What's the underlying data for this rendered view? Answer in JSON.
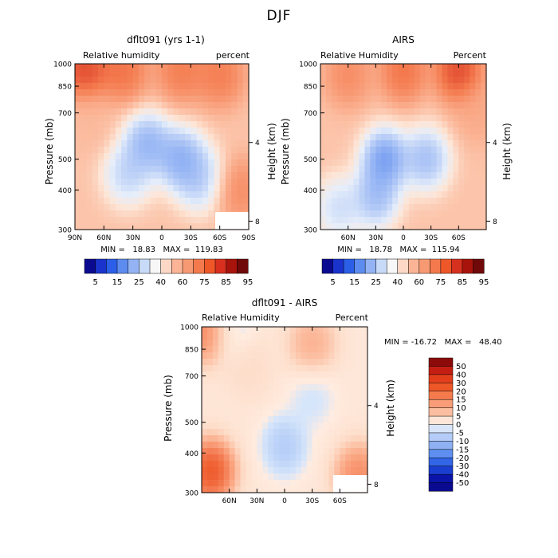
{
  "figure_title": "DJF",
  "chart_data": [
    {
      "id": "model",
      "type": "heatmap",
      "title": "dflt091 (yrs 1-1)",
      "left_label": "Relative humidity",
      "right_label": "percent",
      "ylabel": "Pressure (mb)",
      "y2label": "Height (km)",
      "y_ticks": [
        "300",
        "400",
        "500",
        "700",
        "850",
        "1000"
      ],
      "y2_ticks": [
        "8",
        "4"
      ],
      "x_ticks": [
        "90N",
        "60N",
        "30N",
        "0",
        "30S",
        "60S",
        "90S"
      ],
      "xlim": [
        90,
        -90
      ],
      "ylim": [
        1000,
        300
      ],
      "stats": "MIN =   18.83   MAX =  119.83",
      "colorbar_ticks": [
        "5",
        "15",
        "25",
        "40",
        "60",
        "75",
        "85",
        "95"
      ],
      "blobs": [
        {
          "x": -20,
          "p": 500,
          "v": 20
        },
        {
          "x": -40,
          "p": 430,
          "v": 30
        },
        {
          "x": 15,
          "p": 560,
          "v": 22
        },
        {
          "x": 35,
          "p": 450,
          "v": 32
        },
        {
          "x": 75,
          "p": 650,
          "v": 65
        },
        {
          "x": -80,
          "p": 400,
          "v": 80
        },
        {
          "x": 80,
          "p": 960,
          "v": 98
        },
        {
          "x": 40,
          "p": 950,
          "v": 88
        },
        {
          "x": -20,
          "p": 950,
          "v": 85
        },
        {
          "x": -60,
          "p": 920,
          "v": 85
        }
      ]
    },
    {
      "id": "airs",
      "type": "heatmap",
      "title": "AIRS",
      "left_label": "Relative Humidity",
      "right_label": "Percent",
      "ylabel": "Pressure (mb)",
      "y2label": "Height (km)",
      "y_ticks": [
        "300",
        "400",
        "500",
        "700",
        "850",
        "1000"
      ],
      "y2_ticks": [
        "8",
        "4"
      ],
      "x_ticks": [
        "60N",
        "30N",
        "0",
        "30S",
        "60S"
      ],
      "xlim": [
        90,
        -90
      ],
      "ylim": [
        1000,
        300
      ],
      "stats": "MIN =   18.78   MAX =  115.94",
      "colorbar_ticks": [
        "5",
        "15",
        "25",
        "40",
        "60",
        "75",
        "85",
        "95"
      ],
      "blobs": [
        {
          "x": 20,
          "p": 500,
          "v": 15
        },
        {
          "x": -25,
          "p": 500,
          "v": 25
        },
        {
          "x": 30,
          "p": 380,
          "v": 25
        },
        {
          "x": 70,
          "p": 350,
          "v": 35
        },
        {
          "x": -80,
          "p": 700,
          "v": 70
        },
        {
          "x": -60,
          "p": 950,
          "v": 98
        },
        {
          "x": 0,
          "p": 950,
          "v": 88
        },
        {
          "x": 60,
          "p": 920,
          "v": 80
        }
      ]
    },
    {
      "id": "diff",
      "type": "heatmap",
      "title": "dflt091 - AIRS",
      "left_label": "Relative Humidity",
      "right_label": "Percent",
      "ylabel": "Pressure (mb)",
      "y2label": "Height (km)",
      "y_ticks": [
        "300",
        "400",
        "500",
        "700",
        "850",
        "1000"
      ],
      "y2_ticks": [
        "8",
        "4"
      ],
      "x_ticks": [
        "60N",
        "30N",
        "0",
        "30S",
        "60S"
      ],
      "xlim": [
        90,
        -90
      ],
      "ylim": [
        1000,
        300
      ],
      "stats": "MIN = -16.72   MAX =   48.40",
      "colorbar_ticks": [
        "50",
        "40",
        "30",
        "20",
        "15",
        "10",
        "5",
        "0",
        "-5",
        "-10",
        "-15",
        "-20",
        "-30",
        "-40",
        "-50"
      ],
      "blobs": [
        {
          "x": 80,
          "p": 350,
          "v": 45
        },
        {
          "x": -80,
          "p": 340,
          "v": 30
        },
        {
          "x": 0,
          "p": 420,
          "v": -10
        },
        {
          "x": -30,
          "p": 600,
          "v": -5
        },
        {
          "x": 60,
          "p": 970,
          "v": -8
        },
        {
          "x": 82,
          "p": 970,
          "v": 35
        },
        {
          "x": -30,
          "p": 880,
          "v": 20
        },
        {
          "x": 40,
          "p": 750,
          "v": 8
        }
      ]
    }
  ]
}
